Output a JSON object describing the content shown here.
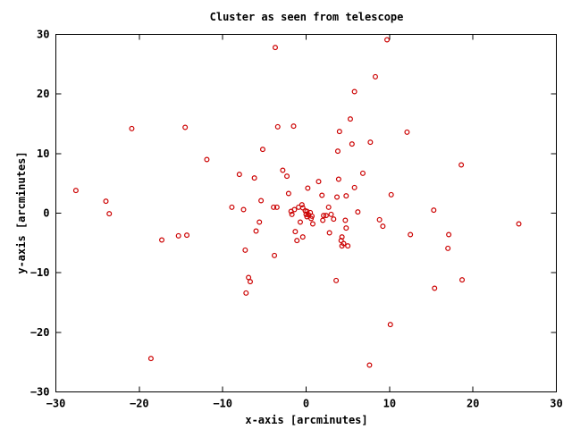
{
  "chart_data": {
    "type": "scatter",
    "title": "Cluster as seen from telescope",
    "xlabel": "x-axis [arcminutes]",
    "ylabel": "y-axis [arcminutes]",
    "xlim": [
      -30,
      30
    ],
    "ylim": [
      -30,
      30
    ],
    "xticks": [
      -30,
      -20,
      -10,
      0,
      10,
      20,
      30
    ],
    "yticks": [
      -30,
      -20,
      -10,
      0,
      10,
      20,
      30
    ],
    "grid": false,
    "legend": "none",
    "marker": "circle",
    "color": "#cc0000",
    "series": [
      {
        "points": [
          [
            -27.6,
            3.8
          ],
          [
            -24.0,
            2.0
          ],
          [
            -23.6,
            -0.1
          ],
          [
            -20.9,
            14.2
          ],
          [
            -18.6,
            -24.4
          ],
          [
            -17.3,
            -4.5
          ],
          [
            -15.3,
            -3.8
          ],
          [
            -14.5,
            14.4
          ],
          [
            -14.3,
            -3.7
          ],
          [
            -11.9,
            9.0
          ],
          [
            -8.9,
            1.0
          ],
          [
            -8.0,
            6.5
          ],
          [
            -7.5,
            0.6
          ],
          [
            -7.3,
            -6.2
          ],
          [
            -7.2,
            -13.4
          ],
          [
            -6.9,
            -10.8
          ],
          [
            -6.7,
            -11.5
          ],
          [
            -6.2,
            5.9
          ],
          [
            -6.0,
            -3.0
          ],
          [
            -5.6,
            -1.5
          ],
          [
            -5.4,
            2.1
          ],
          [
            -5.2,
            10.7
          ],
          [
            -3.9,
            1.0
          ],
          [
            -3.8,
            -7.1
          ],
          [
            -3.7,
            27.8
          ],
          [
            -3.5,
            1.0
          ],
          [
            -3.4,
            14.5
          ],
          [
            -2.8,
            7.2
          ],
          [
            -2.3,
            6.2
          ],
          [
            -2.1,
            3.3
          ],
          [
            -1.8,
            0.3
          ],
          [
            -1.7,
            -0.2
          ],
          [
            -1.5,
            14.6
          ],
          [
            -1.4,
            0.6
          ],
          [
            -1.3,
            -3.1
          ],
          [
            -1.1,
            -4.6
          ],
          [
            -0.9,
            1.0
          ],
          [
            -0.7,
            -1.5
          ],
          [
            -0.5,
            1.4
          ],
          [
            -0.4,
            0.9
          ],
          [
            -0.4,
            -4.0
          ],
          [
            -0.1,
            0.4
          ],
          [
            0.0,
            -0.2
          ],
          [
            0.1,
            0.3
          ],
          [
            0.1,
            -0.6
          ],
          [
            0.2,
            4.2
          ],
          [
            0.3,
            -0.3
          ],
          [
            0.5,
            0.1
          ],
          [
            0.6,
            -0.9
          ],
          [
            0.7,
            -0.5
          ],
          [
            0.8,
            -1.8
          ],
          [
            1.5,
            5.3
          ],
          [
            1.9,
            3.0
          ],
          [
            2.0,
            -1.2
          ],
          [
            2.1,
            -0.4
          ],
          [
            2.4,
            -0.4
          ],
          [
            2.7,
            1.0
          ],
          [
            2.8,
            -3.3
          ],
          [
            3.0,
            -0.2
          ],
          [
            3.3,
            -1.0
          ],
          [
            3.6,
            -11.3
          ],
          [
            3.7,
            2.7
          ],
          [
            3.8,
            10.4
          ],
          [
            3.9,
            5.7
          ],
          [
            4.0,
            13.7
          ],
          [
            4.2,
            -4.6
          ],
          [
            4.3,
            -5.5
          ],
          [
            4.3,
            -4.0
          ],
          [
            4.5,
            -5.1
          ],
          [
            4.7,
            -1.2
          ],
          [
            4.8,
            -2.5
          ],
          [
            4.8,
            2.9
          ],
          [
            5.0,
            -5.5
          ],
          [
            5.3,
            15.8
          ],
          [
            5.5,
            11.6
          ],
          [
            5.8,
            4.3
          ],
          [
            5.8,
            20.4
          ],
          [
            6.2,
            0.2
          ],
          [
            6.8,
            6.7
          ],
          [
            7.6,
            -25.5
          ],
          [
            7.7,
            11.9
          ],
          [
            8.3,
            22.9
          ],
          [
            8.8,
            -1.1
          ],
          [
            9.2,
            -2.2
          ],
          [
            9.7,
            29.1
          ],
          [
            10.1,
            -18.7
          ],
          [
            10.2,
            3.1
          ],
          [
            12.1,
            13.6
          ],
          [
            12.5,
            -3.6
          ],
          [
            15.3,
            0.5
          ],
          [
            15.4,
            -12.6
          ],
          [
            17.0,
            -5.9
          ],
          [
            17.1,
            -3.6
          ],
          [
            18.6,
            8.1
          ],
          [
            18.7,
            -11.2
          ],
          [
            25.5,
            -1.8
          ]
        ]
      }
    ]
  }
}
